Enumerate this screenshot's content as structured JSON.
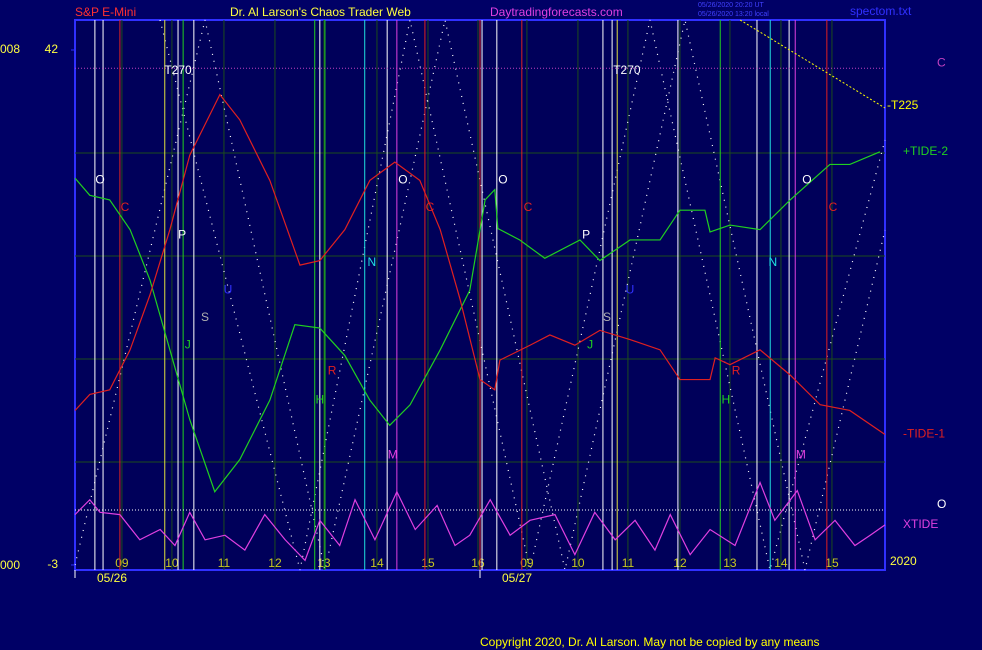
{
  "chart_data": {
    "type": "line",
    "title": "S&P E-Mini",
    "subtitle": "Dr. Al Larson's Chaos Trader Web",
    "site": "Daytradingforecasts.com",
    "stamps": [
      "05/26/2020 20:20 UT",
      "05/26/2020 13:20 local"
    ],
    "file": "spectom.txt",
    "copyright": "Copyright 2020, Dr. Al Larson. May not be copied by any means",
    "year": "2020",
    "edge_labels": [
      "008",
      "000"
    ],
    "xlim": [
      -0.92,
      14.96
    ],
    "ylim": [
      -3.44,
      44.62
    ],
    "yticks": [
      42,
      -3
    ],
    "y_gridlines": [
      33,
      24,
      15,
      6
    ],
    "xticks": [
      {
        "value": 0,
        "label": "09"
      },
      {
        "value": 0.98,
        "label": "10"
      },
      {
        "value": 2,
        "label": "11"
      },
      {
        "value": 3,
        "label": "12"
      },
      {
        "value": 3.96,
        "label": "13"
      },
      {
        "value": 5,
        "label": "14"
      },
      {
        "value": 6,
        "label": "15"
      },
      {
        "value": 6.98,
        "label": "16"
      },
      {
        "value": 7.94,
        "label": "09"
      },
      {
        "value": 8.94,
        "label": "10"
      },
      {
        "value": 9.92,
        "label": "11"
      },
      {
        "value": 10.94,
        "label": "12"
      },
      {
        "value": 11.92,
        "label": "13"
      },
      {
        "value": 12.92,
        "label": "14"
      },
      {
        "value": 13.92,
        "label": "15"
      }
    ],
    "date_labels": [
      {
        "value": -0.92,
        "label": "05/26"
      },
      {
        "value": 7.02,
        "label": "05/27"
      }
    ],
    "series": [
      {
        "name": "+TIDE-2",
        "color": "#20d020",
        "x": [
          -0.92,
          -0.63,
          -0.24,
          0.16,
          0.55,
          0.94,
          1.33,
          1.82,
          2.31,
          2.9,
          3.39,
          3.88,
          4.37,
          4.86,
          5.25,
          5.65,
          6.24,
          6.82,
          7.12,
          7.31,
          7.37,
          7.8,
          8.29,
          8.98,
          9.37,
          9.96,
          10.55,
          10.94,
          11.43,
          11.53,
          11.92,
          12.51,
          13.1,
          13.88,
          14.27,
          14.86
        ],
        "values": [
          30.8,
          29.3,
          28.9,
          26.3,
          21.9,
          15.8,
          9.7,
          3.4,
          6.2,
          11.4,
          18.0,
          17.7,
          15.3,
          11.4,
          9.2,
          11.0,
          15.8,
          21.0,
          28.9,
          29.8,
          26.4,
          25.4,
          23.8,
          25.4,
          23.6,
          25.4,
          25.4,
          28.0,
          28.0,
          26.1,
          26.7,
          26.3,
          28.9,
          32.0,
          32.0,
          33.1
        ]
      },
      {
        "name": "-TIDE-1",
        "color": "#e02020",
        "x": [
          -0.92,
          -0.63,
          -0.24,
          0.16,
          0.55,
          0.94,
          1.33,
          1.92,
          2.31,
          2.9,
          3.49,
          3.88,
          4.37,
          4.86,
          5.35,
          5.84,
          6.24,
          6.63,
          7.02,
          7.31,
          7.41,
          8.0,
          8.39,
          8.88,
          9.37,
          9.96,
          10.55,
          10.94,
          11.53,
          11.63,
          11.92,
          12.51,
          13.1,
          13.69,
          14.27,
          14.96
        ],
        "values": [
          10.5,
          11.9,
          12.3,
          15.8,
          20.6,
          26.3,
          32.8,
          38.1,
          35.9,
          30.6,
          23.2,
          23.6,
          26.3,
          30.6,
          32.2,
          30.6,
          26.3,
          20.2,
          13.2,
          12.3,
          14.9,
          16.2,
          17.1,
          16.2,
          17.5,
          16.7,
          15.8,
          13.2,
          13.2,
          15.1,
          14.5,
          15.8,
          13.6,
          11.0,
          10.5,
          8.4
        ]
      },
      {
        "name": "XTIDE",
        "color": "#e040e0",
        "x": [
          -0.92,
          -0.63,
          -0.43,
          -0.04,
          0.35,
          0.75,
          1.04,
          1.33,
          1.63,
          2.02,
          2.41,
          2.8,
          3.2,
          3.59,
          3.88,
          4.27,
          4.57,
          4.96,
          5.39,
          5.75,
          6.18,
          6.53,
          6.82,
          7.22,
          7.61,
          8.0,
          8.49,
          8.88,
          9.27,
          9.67,
          10.06,
          10.45,
          10.75,
          11.14,
          11.53,
          12.02,
          12.51,
          12.8,
          13.24,
          13.59,
          13.98,
          14.37,
          14.67,
          14.96
        ],
        "values": [
          1.4,
          2.7,
          1.6,
          1.4,
          -0.8,
          0.1,
          -1.3,
          1.6,
          -0.8,
          -0.4,
          -1.7,
          1.4,
          -0.8,
          -2.6,
          0.9,
          -1.3,
          2.7,
          -0.8,
          3.4,
          0.1,
          2.2,
          -1.3,
          -0.4,
          2.7,
          -0.4,
          0.9,
          1.4,
          -2.1,
          1.6,
          -0.8,
          0.9,
          -1.7,
          1.4,
          -2.1,
          0.1,
          -1.3,
          4.2,
          0.9,
          3.5,
          -0.8,
          0.9,
          -1.3,
          -0.4,
          0.5
        ]
      }
    ],
    "hlines": [
      {
        "label": "C",
        "y": 40.4,
        "color": "#c040c0"
      },
      {
        "label": "O",
        "y": 1.8,
        "color": "#ffffff"
      }
    ],
    "trendline": {
      "label": "-T225",
      "x": [
        12.12,
        14.96
      ],
      "y": [
        44.62,
        36.93
      ],
      "color": "#ffff00"
    },
    "vlines": [
      {
        "x": -0.53,
        "color": "#ffffff"
      },
      {
        "x": -0.37,
        "color": "#ffffff"
      },
      {
        "x": 1.1,
        "color": "#ffffff"
      },
      {
        "x": 1.41,
        "color": "#ffffff"
      },
      {
        "x": 3.88,
        "color": "#ffffff"
      },
      {
        "x": 5.2,
        "color": "#ffffff"
      },
      {
        "x": 7.06,
        "color": "#ffffff"
      },
      {
        "x": 7.35,
        "color": "#ffffff"
      },
      {
        "x": 9.43,
        "color": "#ffffff"
      },
      {
        "x": 9.61,
        "color": "#ffffff"
      },
      {
        "x": 10.9,
        "color": "#ffffff"
      },
      {
        "x": 12.45,
        "color": "#ffffff"
      },
      {
        "x": 13.08,
        "color": "#ffffff"
      },
      {
        "x": -0.04,
        "color": "#e02020"
      },
      {
        "x": 5.94,
        "color": "#e02020"
      },
      {
        "x": 7.84,
        "color": "#e02020"
      },
      {
        "x": 13.82,
        "color": "#e02020"
      },
      {
        "x": 7.02,
        "color": "#e02020"
      },
      {
        "x": 1.2,
        "color": "#20d020"
      },
      {
        "x": 3.78,
        "color": "#20d020"
      },
      {
        "x": 3.98,
        "color": "#20d020"
      },
      {
        "x": 11.73,
        "color": "#20d020"
      },
      {
        "x": 0.84,
        "color": "#e0e040"
      },
      {
        "x": 9.71,
        "color": "#e0e040"
      },
      {
        "x": 4.76,
        "color": "#20e0e0"
      },
      {
        "x": 12.71,
        "color": "#20e0e0"
      },
      {
        "x": 5.39,
        "color": "#e040e0"
      },
      {
        "x": 13.2,
        "color": "#e040e0"
      }
    ],
    "annotations": [
      {
        "text": "T270",
        "x": 1.1,
        "y": 40.2,
        "color": "#ffffff"
      },
      {
        "text": "T270",
        "x": 9.9,
        "y": 40.2,
        "color": "#ffffff"
      },
      {
        "text": "O",
        "x": -0.43,
        "y": 30.6,
        "color": "#ffffff"
      },
      {
        "text": "C",
        "x": 0.06,
        "y": 28.2,
        "color": "#e02020"
      },
      {
        "text": "P",
        "x": 1.18,
        "y": 25.8,
        "color": "#ffffff"
      },
      {
        "text": "U",
        "x": 2.08,
        "y": 21.0,
        "color": "#3030ff"
      },
      {
        "text": "S",
        "x": 1.63,
        "y": 18.6,
        "color": "#b0b0b0"
      },
      {
        "text": "J",
        "x": 1.29,
        "y": 16.2,
        "color": "#20d020"
      },
      {
        "text": "R",
        "x": 4.12,
        "y": 13.9,
        "color": "#e02020"
      },
      {
        "text": "H",
        "x": 3.88,
        "y": 11.4,
        "color": "#20d020"
      },
      {
        "text": "N",
        "x": 4.9,
        "y": 23.4,
        "color": "#20e0e0"
      },
      {
        "text": "O",
        "x": 5.51,
        "y": 30.6,
        "color": "#ffffff"
      },
      {
        "text": "C",
        "x": 6.04,
        "y": 28.2,
        "color": "#e02020"
      },
      {
        "text": "M",
        "x": 5.31,
        "y": 6.6,
        "color": "#e040e0"
      },
      {
        "text": "O",
        "x": 7.47,
        "y": 30.6,
        "color": "#ffffff"
      },
      {
        "text": "C",
        "x": 7.96,
        "y": 28.2,
        "color": "#e02020"
      },
      {
        "text": "P",
        "x": 9.1,
        "y": 25.8,
        "color": "#ffffff"
      },
      {
        "text": "U",
        "x": 9.96,
        "y": 21.0,
        "color": "#3030ff"
      },
      {
        "text": "S",
        "x": 9.51,
        "y": 18.6,
        "color": "#b0b0b0"
      },
      {
        "text": "J",
        "x": 9.18,
        "y": 16.2,
        "color": "#20d020"
      },
      {
        "text": "R",
        "x": 12.04,
        "y": 13.9,
        "color": "#e02020"
      },
      {
        "text": "H",
        "x": 11.84,
        "y": 11.4,
        "color": "#20d020"
      },
      {
        "text": "N",
        "x": 12.76,
        "y": 23.4,
        "color": "#20e0e0"
      },
      {
        "text": "M",
        "x": 13.31,
        "y": 6.6,
        "color": "#e040e0"
      },
      {
        "text": "O",
        "x": 13.43,
        "y": 30.6,
        "color": "#ffffff"
      },
      {
        "text": "C",
        "x": 13.94,
        "y": 28.2,
        "color": "#e02020"
      }
    ]
  }
}
